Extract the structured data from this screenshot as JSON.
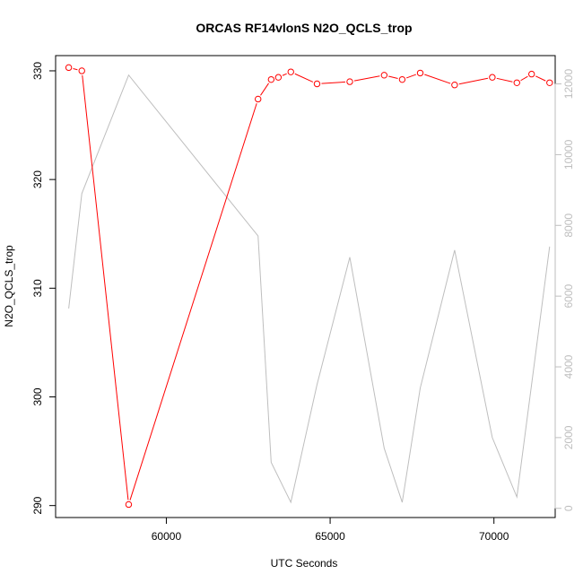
{
  "chart_data": {
    "type": "line",
    "title": "ORCAS RF14vlonS N2O_QCLS_trop",
    "xlabel": "UTC Seconds",
    "ylabel": "N2O_QCLS_trop",
    "xlim": [
      56620,
      71870
    ],
    "ylim": [
      288.9,
      331.4
    ],
    "y2lim": [
      -260,
      12800
    ],
    "x_ticks": [
      60000,
      65000,
      70000
    ],
    "y_ticks": [
      290,
      300,
      310,
      320,
      330
    ],
    "y2_ticks": [
      0,
      2000,
      4000,
      6000,
      8000,
      10000,
      12000
    ],
    "series": [
      {
        "axis": "left",
        "color": "#ff0000",
        "markers": true,
        "x": [
          57020,
          57420,
          58850,
          62800,
          63200,
          63420,
          63800,
          64600,
          65600,
          66650,
          67200,
          67750,
          68800,
          69950,
          70700,
          71150,
          71700
        ],
        "values": [
          330.3,
          330.0,
          290.1,
          327.4,
          329.2,
          329.4,
          329.9,
          328.8,
          329.0,
          329.6,
          329.2,
          329.8,
          328.7,
          329.4,
          328.9,
          329.7,
          328.9
        ]
      },
      {
        "axis": "right",
        "color": "#bebebe",
        "markers": false,
        "x": [
          57020,
          57420,
          58850,
          62800,
          63200,
          63800,
          64600,
          65600,
          66650,
          67200,
          67750,
          68800,
          69950,
          70700,
          71700
        ],
        "values": [
          5650,
          8900,
          12250,
          7700,
          1300,
          170,
          3500,
          7100,
          1700,
          170,
          3400,
          7300,
          2000,
          320,
          7400
        ]
      }
    ]
  }
}
